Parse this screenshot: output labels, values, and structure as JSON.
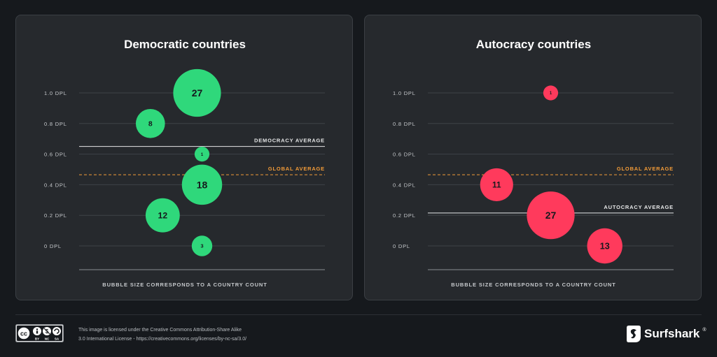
{
  "chart_data": [
    {
      "type": "scatter",
      "title": "Democratic countries",
      "y_tick_labels": [
        "1.0 DPL",
        "0.8 DPL",
        "0.6 DPL",
        "0.4 DPL",
        "0.2 DPL",
        "0 DPL"
      ],
      "y_ticks": [
        1.0,
        0.8,
        0.6,
        0.4,
        0.2,
        0.0
      ],
      "ylim": [
        -0.16,
        1.0
      ],
      "color": "#2fd87b",
      "points": [
        {
          "y": 1.0,
          "count": 27,
          "x": 0.48
        },
        {
          "y": 0.8,
          "count": 8,
          "x": 0.29
        },
        {
          "y": 0.6,
          "count": 1,
          "x": 0.5
        },
        {
          "y": 0.4,
          "count": 18,
          "x": 0.5
        },
        {
          "y": 0.2,
          "count": 12,
          "x": 0.34
        },
        {
          "y": 0.0,
          "count": 3,
          "x": 0.5
        }
      ],
      "reference_lines": [
        {
          "label": "DEMOCRACY AVERAGE",
          "y": 0.65,
          "style": "solid",
          "color": "#e6e7e8"
        },
        {
          "label": "GLOBAL AVERAGE",
          "y": 0.465,
          "style": "dashed",
          "color": "#f29b38"
        }
      ],
      "caption": "BUBBLE SIZE CORRESPONDS TO A COUNTRY COUNT"
    },
    {
      "type": "scatter",
      "title": "Autocracy countries",
      "y_tick_labels": [
        "1.0 DPL",
        "0.8 DPL",
        "0.6 DPL",
        "0.4 DPL",
        "0.2 DPL",
        "0 DPL"
      ],
      "y_ticks": [
        1.0,
        0.8,
        0.6,
        0.4,
        0.2,
        0.0
      ],
      "ylim": [
        -0.16,
        1.0
      ],
      "color": "#ff3a5c",
      "points": [
        {
          "y": 1.0,
          "count": 1,
          "x": 0.5
        },
        {
          "y": 0.4,
          "count": 11,
          "x": 0.28
        },
        {
          "y": 0.2,
          "count": 27,
          "x": 0.5
        },
        {
          "y": 0.0,
          "count": 13,
          "x": 0.72
        }
      ],
      "reference_lines": [
        {
          "label": "GLOBAL AVERAGE",
          "y": 0.465,
          "style": "dashed",
          "color": "#f29b38"
        },
        {
          "label": "AUTOCRACY AVERAGE",
          "y": 0.215,
          "style": "solid",
          "color": "#e6e7e8"
        }
      ],
      "caption": "BUBBLE SIZE CORRESPONDS TO A COUNTRY COUNT"
    }
  ],
  "footer": {
    "license_line1": "This image is licensed under the Creative Commons Attribution-Share Alike",
    "license_line2": "3.0 International License - https://creativecommons.org/licenses/by-nc-sa/3.0/",
    "cc_badge": {
      "cc": "cc",
      "labels": [
        "BY",
        "NC",
        "SA"
      ]
    },
    "brand": "Surfshark",
    "brand_mark": "®"
  },
  "colors": {
    "background": "#16191d",
    "panel": "#26292d",
    "grid": "#3e4247",
    "democratic_bubble": "#2fd87b",
    "autocracy_bubble": "#ff3a5c",
    "global_average": "#f29b38"
  },
  "icons": {
    "cc_badge": "creative-commons-by-nc-sa-icon",
    "brand_logo": "surfshark-logo-icon"
  }
}
